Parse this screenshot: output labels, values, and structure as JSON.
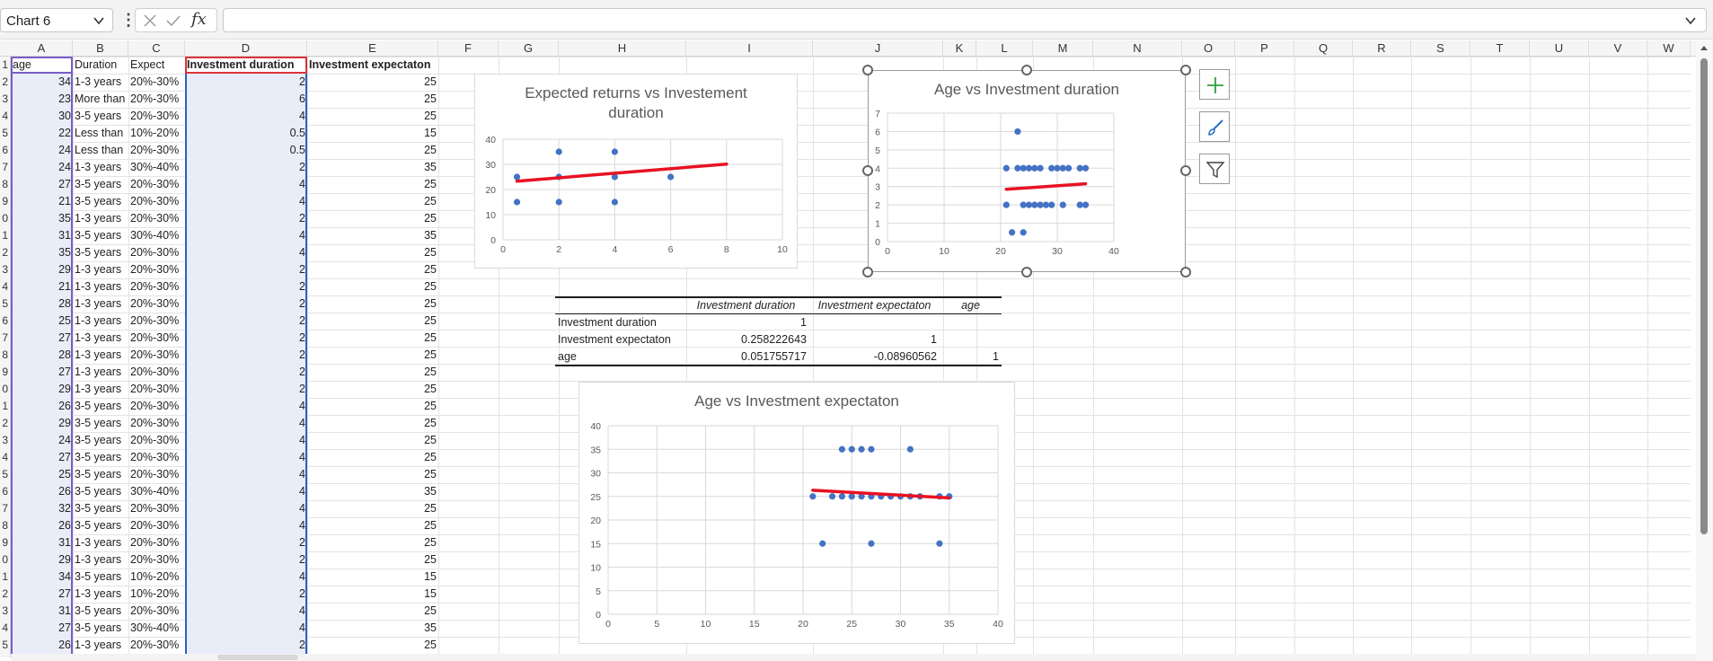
{
  "formula_bar": {
    "name_box": "Chart 6",
    "formula": "",
    "fx_label": "fx"
  },
  "columns": [
    "A",
    "B",
    "C",
    "D",
    "E",
    "F",
    "G",
    "H",
    "I",
    "J",
    "K",
    "L",
    "M",
    "N",
    "O",
    "P",
    "Q",
    "R",
    "S",
    "T",
    "U",
    "V",
    "W"
  ],
  "row_numbers": [
    "1",
    "2",
    "3",
    "4",
    "5",
    "6",
    "7",
    "8",
    "9",
    "0",
    "1",
    "2",
    "3",
    "4",
    "5",
    "6",
    "7",
    "8",
    "9",
    "0",
    "1",
    "2",
    "3",
    "4",
    "5",
    "6",
    "7",
    "8",
    "9",
    "0",
    "1",
    "2",
    "3",
    "4",
    "5"
  ],
  "sheet": {
    "headers": [
      "age",
      "Duration",
      "Expect",
      "Investment duration",
      "Investment expectaton"
    ],
    "rows": [
      [
        "34",
        "1-3 years",
        "20%-30%",
        "2",
        "25"
      ],
      [
        "23",
        "More than",
        "20%-30%",
        "6",
        "25"
      ],
      [
        "30",
        "3-5 years",
        "20%-30%",
        "4",
        "25"
      ],
      [
        "22",
        "Less than",
        "10%-20%",
        "0.5",
        "15"
      ],
      [
        "24",
        "Less than",
        "20%-30%",
        "0.5",
        "25"
      ],
      [
        "24",
        "1-3 years",
        "30%-40%",
        "2",
        "35"
      ],
      [
        "27",
        "3-5 years",
        "20%-30%",
        "4",
        "25"
      ],
      [
        "21",
        "3-5 years",
        "20%-30%",
        "4",
        "25"
      ],
      [
        "35",
        "1-3 years",
        "20%-30%",
        "2",
        "25"
      ],
      [
        "31",
        "3-5 years",
        "30%-40%",
        "4",
        "35"
      ],
      [
        "35",
        "3-5 years",
        "20%-30%",
        "4",
        "25"
      ],
      [
        "29",
        "1-3 years",
        "20%-30%",
        "2",
        "25"
      ],
      [
        "21",
        "1-3 years",
        "20%-30%",
        "2",
        "25"
      ],
      [
        "28",
        "1-3 years",
        "20%-30%",
        "2",
        "25"
      ],
      [
        "25",
        "1-3 years",
        "20%-30%",
        "2",
        "25"
      ],
      [
        "27",
        "1-3 years",
        "20%-30%",
        "2",
        "25"
      ],
      [
        "28",
        "1-3 years",
        "20%-30%",
        "2",
        "25"
      ],
      [
        "27",
        "1-3 years",
        "20%-30%",
        "2",
        "25"
      ],
      [
        "29",
        "1-3 years",
        "20%-30%",
        "2",
        "25"
      ],
      [
        "26",
        "3-5 years",
        "20%-30%",
        "4",
        "25"
      ],
      [
        "29",
        "3-5 years",
        "20%-30%",
        "4",
        "25"
      ],
      [
        "24",
        "3-5 years",
        "20%-30%",
        "4",
        "25"
      ],
      [
        "27",
        "3-5 years",
        "20%-30%",
        "4",
        "25"
      ],
      [
        "25",
        "3-5 years",
        "20%-30%",
        "4",
        "25"
      ],
      [
        "26",
        "3-5 years",
        "30%-40%",
        "4",
        "35"
      ],
      [
        "32",
        "3-5 years",
        "20%-30%",
        "4",
        "25"
      ],
      [
        "26",
        "3-5 years",
        "20%-30%",
        "4",
        "25"
      ],
      [
        "31",
        "1-3 years",
        "20%-30%",
        "2",
        "25"
      ],
      [
        "29",
        "1-3 years",
        "20%-30%",
        "2",
        "25"
      ],
      [
        "34",
        "3-5 years",
        "10%-20%",
        "4",
        "15"
      ],
      [
        "27",
        "1-3 years",
        "10%-20%",
        "2",
        "15"
      ],
      [
        "31",
        "3-5 years",
        "20%-30%",
        "4",
        "25"
      ],
      [
        "27",
        "3-5 years",
        "30%-40%",
        "4",
        "35"
      ],
      [
        "26",
        "1-3 years",
        "20%-30%",
        "2",
        "25"
      ]
    ]
  },
  "correlation": {
    "col_headers": [
      "Investment duration",
      "Investment expectaton",
      "age"
    ],
    "rows": [
      {
        "label": "Investment duration",
        "values": [
          "1",
          "",
          ""
        ]
      },
      {
        "label": "Investment expectaton",
        "values": [
          "0.258222643",
          "1",
          ""
        ]
      },
      {
        "label": "age",
        "values": [
          "0.051755717",
          "-0.08960562",
          "1"
        ]
      }
    ]
  },
  "colors": {
    "marker": "#4472c4",
    "trendline": "#e81123",
    "selection": "#e8edf8",
    "accent_green": "#2e9e43"
  },
  "side_buttons": [
    "chart-elements-icon",
    "chart-styles-icon",
    "chart-filters-icon"
  ],
  "chart_data": [
    {
      "type": "scatter",
      "title": "Expected returns vs Investement duration",
      "xlim": [
        0,
        10
      ],
      "ylim": [
        0,
        40
      ],
      "xticks": [
        0,
        2,
        4,
        6,
        8,
        10
      ],
      "yticks": [
        0,
        10,
        20,
        30,
        40
      ],
      "points": [
        [
          0.5,
          25
        ],
        [
          0.5,
          15
        ],
        [
          2,
          35
        ],
        [
          2,
          25
        ],
        [
          2,
          15
        ],
        [
          4,
          35
        ],
        [
          4,
          25
        ],
        [
          4,
          15
        ],
        [
          6,
          25
        ]
      ],
      "trendline": [
        [
          0.5,
          23.3
        ],
        [
          8,
          30.1
        ]
      ],
      "grid": true
    },
    {
      "type": "scatter",
      "title": "Age vs Investment duration",
      "xlim": [
        0,
        40
      ],
      "ylim": [
        0,
        7
      ],
      "xticks": [
        0,
        10,
        20,
        30,
        40
      ],
      "yticks": [
        0,
        1,
        2,
        3,
        4,
        5,
        6,
        7
      ],
      "points": [
        [
          21,
          4
        ],
        [
          23,
          4
        ],
        [
          24,
          4
        ],
        [
          25,
          4
        ],
        [
          26,
          4
        ],
        [
          27,
          4
        ],
        [
          29,
          4
        ],
        [
          30,
          4
        ],
        [
          31,
          4
        ],
        [
          32,
          4
        ],
        [
          34,
          4
        ],
        [
          35,
          4
        ],
        [
          21,
          2
        ],
        [
          24,
          2
        ],
        [
          25,
          2
        ],
        [
          26,
          2
        ],
        [
          27,
          2
        ],
        [
          28,
          2
        ],
        [
          29,
          2
        ],
        [
          31,
          2
        ],
        [
          34,
          2
        ],
        [
          35,
          2
        ],
        [
          23,
          6
        ],
        [
          22,
          0.5
        ],
        [
          24,
          0.5
        ]
      ],
      "trendline": [
        [
          21,
          2.85
        ],
        [
          35,
          3.15
        ]
      ],
      "grid": true
    },
    {
      "type": "scatter",
      "title": "Age vs Investment expectaton",
      "xlim": [
        0,
        40
      ],
      "ylim": [
        0,
        40
      ],
      "xticks": [
        0,
        5,
        10,
        15,
        20,
        25,
        30,
        35,
        40
      ],
      "yticks": [
        0,
        5,
        10,
        15,
        20,
        25,
        30,
        35,
        40
      ],
      "points": [
        [
          21,
          25
        ],
        [
          23,
          25
        ],
        [
          24,
          25
        ],
        [
          25,
          25
        ],
        [
          26,
          25
        ],
        [
          27,
          25
        ],
        [
          28,
          25
        ],
        [
          29,
          25
        ],
        [
          30,
          25
        ],
        [
          31,
          25
        ],
        [
          32,
          25
        ],
        [
          34,
          25
        ],
        [
          35,
          25
        ],
        [
          24,
          35
        ],
        [
          25,
          35
        ],
        [
          26,
          35
        ],
        [
          27,
          35
        ],
        [
          31,
          35
        ],
        [
          22,
          15
        ],
        [
          27,
          15
        ],
        [
          34,
          15
        ]
      ],
      "trendline": [
        [
          21,
          26.3
        ],
        [
          35,
          24.7
        ]
      ],
      "grid": true
    }
  ]
}
